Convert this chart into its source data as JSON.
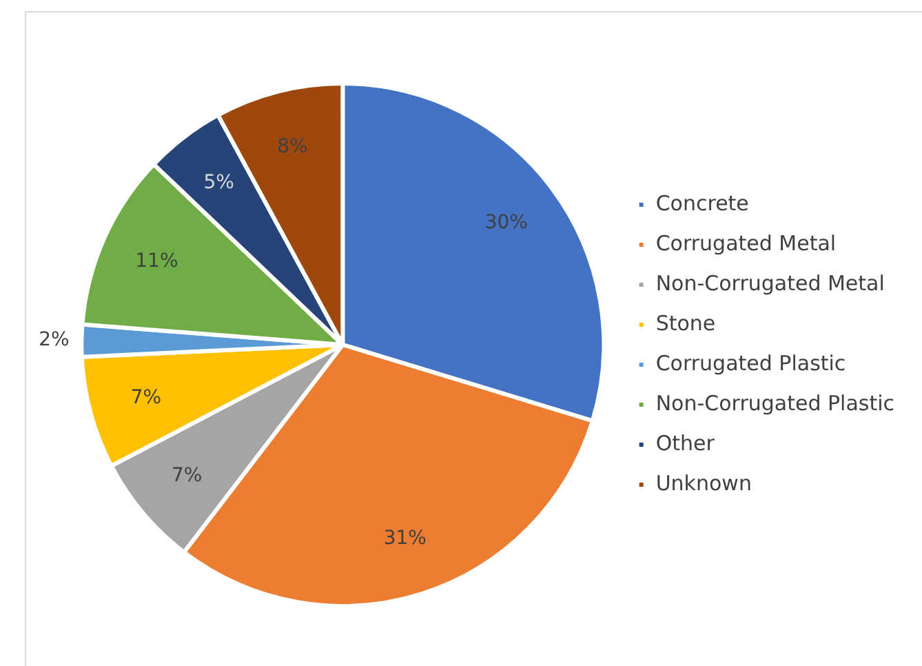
{
  "chart_data": {
    "type": "pie",
    "categories": [
      "Concrete",
      "Corrugated Metal",
      "Non-Corrugated Metal",
      "Stone",
      "Corrugated Plastic",
      "Non-Corrugated Plastic",
      "Other",
      "Unknown"
    ],
    "values": [
      30,
      31,
      7,
      7,
      2,
      11,
      5,
      8
    ],
    "colors": [
      "#4472c4",
      "#ed7d31",
      "#a5a5a5",
      "#ffc000",
      "#5b9bd5",
      "#70ad47",
      "#264478",
      "#9e480e"
    ],
    "value_labels": [
      "30%",
      "31%",
      "7%",
      "7%",
      "2%",
      "11%",
      "5%",
      "8%"
    ],
    "legend": "right"
  }
}
